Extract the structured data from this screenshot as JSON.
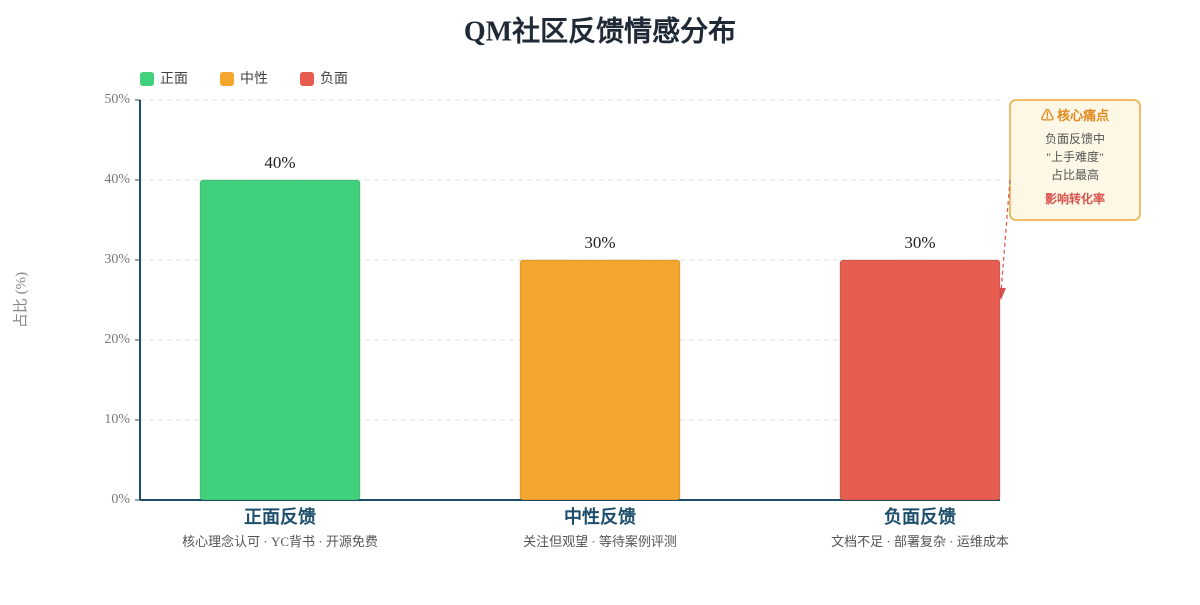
{
  "chart_data": {
    "type": "bar",
    "title": "QM社区反馈情感分布",
    "categories": [
      "正面反馈",
      "中性反馈",
      "负面反馈"
    ],
    "category_notes": [
      "核心理念认可 · YC背书 · 开源免费",
      "关注但观望 · 等待案例评测",
      "文档不足 · 部署复杂 · 运维成本"
    ],
    "values": [
      40,
      30,
      30
    ],
    "value_labels": [
      "40%",
      "30%",
      "30%"
    ],
    "colors": [
      "#41d07c",
      "#f4a52d",
      "#e65c4f"
    ],
    "legend": {
      "position": "top-left",
      "entries": [
        "正面",
        "中性",
        "负面"
      ]
    },
    "y_label": "占比 (%)",
    "ylim": [
      0,
      50
    ],
    "yticks": [
      {
        "value": 0,
        "label": "0%"
      },
      {
        "value": 10,
        "label": "10%"
      },
      {
        "value": 20,
        "label": "20%"
      },
      {
        "value": 30,
        "label": "30%"
      },
      {
        "value": 40,
        "label": "40%"
      },
      {
        "value": 50,
        "label": "50%"
      }
    ],
    "grid": true,
    "annotation": {
      "title": "⚠ 核心痛点",
      "lines": [
        "负面反馈中",
        "\"上手难度\"",
        "占比最高"
      ],
      "emphasis": "影响转化率"
    }
  }
}
